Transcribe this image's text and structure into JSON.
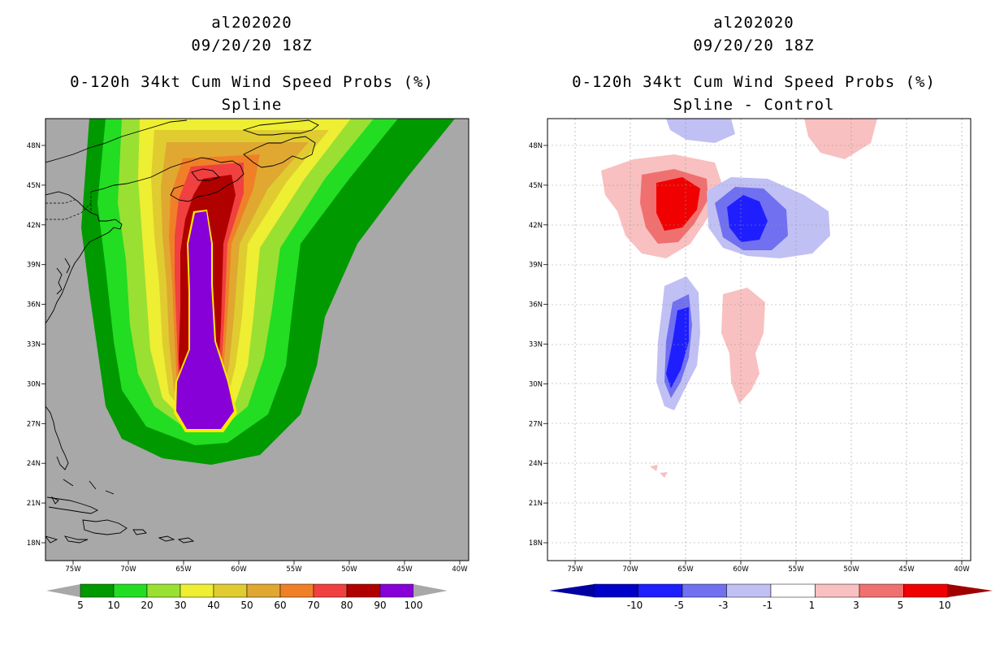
{
  "left_panel": {
    "storm_id": "al202020",
    "datetime": "09/20/20 18Z",
    "product": "0-120h 34kt Cum Wind Speed Probs (%)",
    "subtitle": "Spline"
  },
  "right_panel": {
    "storm_id": "al202020",
    "datetime": "09/20/20 18Z",
    "product": "0-120h 34kt Cum Wind Speed Probs (%)",
    "subtitle": "Spline - Control"
  },
  "axes": {
    "lat_labels": [
      "48N",
      "45N",
      "42N",
      "39N",
      "36N",
      "33N",
      "30N",
      "27N",
      "24N",
      "21N",
      "18N"
    ],
    "lon_labels": [
      "75W",
      "70W",
      "65W",
      "60W",
      "55W",
      "50W",
      "45W",
      "40W"
    ]
  },
  "left_colorbar": {
    "labels": [
      "5",
      "10",
      "20",
      "30",
      "40",
      "50",
      "60",
      "70",
      "80",
      "90",
      "100"
    ],
    "colors": [
      "#009900",
      "#22dd22",
      "#99e033",
      "#eeee33",
      "#e0cc30",
      "#e0a830",
      "#f08028",
      "#f04040",
      "#b00000",
      "#8800d8"
    ],
    "background_color": "#a8a8a8"
  },
  "right_colorbar": {
    "labels": [
      "-10",
      "-5",
      "-3",
      "-1",
      "1",
      "3",
      "5",
      "10"
    ],
    "colors": [
      "#0000c8",
      "#1e1eff",
      "#7070f0",
      "#c0c0f4",
      "#ffffff",
      "#f8c0c0",
      "#f07070",
      "#f00000"
    ],
    "end_colors": {
      "low": "#0000a0",
      "high": "#a00000"
    }
  }
}
